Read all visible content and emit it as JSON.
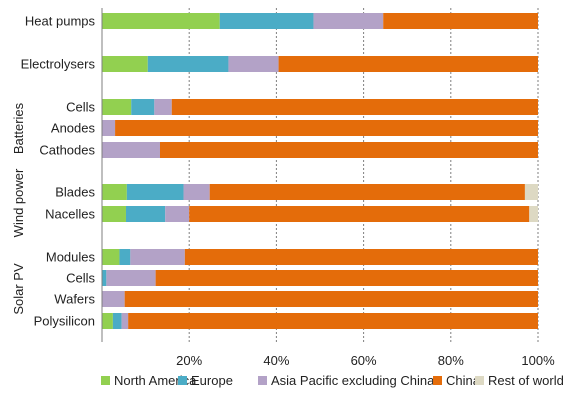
{
  "chart_data": {
    "type": "bar",
    "orientation": "horizontal",
    "stacked": true,
    "xlim": [
      0,
      1
    ],
    "x_ticks": [
      "20%",
      "40%",
      "60%",
      "80%",
      "100%"
    ],
    "x_tick_values": [
      0.2,
      0.4,
      0.6,
      0.8,
      1.0
    ],
    "grid": "vertical dotted",
    "legend_position": "bottom",
    "colors": {
      "North America": "#92d050",
      "Europe": "#4bacc6",
      "Asia Pacific excluding China": "#b3a2c7",
      "China": "#e46c0a",
      "Rest of world": "#ddd9c3"
    },
    "groups": [
      {
        "label": "",
        "categories": [
          "Heat pumps"
        ]
      },
      {
        "label": "",
        "categories": [
          "Electrolysers"
        ]
      },
      {
        "label": "Batteries",
        "categories": [
          "Cells",
          "Anodes",
          "Cathodes"
        ]
      },
      {
        "label": "Wind power",
        "categories": [
          "Blades",
          "Nacelles"
        ]
      },
      {
        "label": "Solar PV",
        "categories": [
          "Modules",
          "Cells",
          "Wafers",
          "Polysilicon"
        ]
      }
    ],
    "categories": [
      "Heat pumps",
      "Electrolysers",
      "Cells",
      "Anodes",
      "Cathodes",
      "Blades",
      "Nacelles",
      "Modules",
      "Cells",
      "Wafers",
      "Polysilicon"
    ],
    "series": [
      {
        "name": "North America",
        "values": [
          0.27,
          0.105,
          0.067,
          0.0,
          0.0,
          0.057,
          0.055,
          0.04,
          0.0,
          0.0,
          0.025
        ]
      },
      {
        "name": "Europe",
        "values": [
          0.215,
          0.185,
          0.053,
          0.0,
          0.0,
          0.13,
          0.09,
          0.025,
          0.01,
          0.0,
          0.02
        ]
      },
      {
        "name": "Asia Pacific excluding China",
        "values": [
          0.16,
          0.115,
          0.04,
          0.03,
          0.133,
          0.06,
          0.055,
          0.125,
          0.113,
          0.052,
          0.015
        ]
      },
      {
        "name": "China",
        "values": [
          0.355,
          0.595,
          0.84,
          0.97,
          0.867,
          0.723,
          0.78,
          0.81,
          0.877,
          0.948,
          0.94
        ]
      },
      {
        "name": "Rest of world",
        "values": [
          0.0,
          0.0,
          0.0,
          0.0,
          0.0,
          0.03,
          0.02,
          0.0,
          0.0,
          0.0,
          0.0
        ]
      }
    ]
  }
}
